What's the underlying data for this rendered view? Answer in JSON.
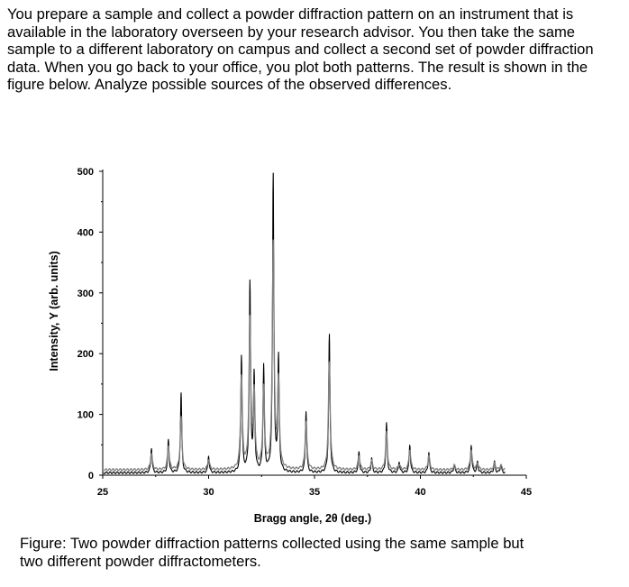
{
  "problem": {
    "text": "You prepare a sample and collect a powder diffraction pattern on an instrument that is available in the laboratory overseen by your research advisor. You then take the same sample to a different laboratory on campus and collect a second set of powder diffraction data. When you go back to your office, you plot both patterns. The result is shown in the figure below. Analyze possible sources of the observed differences."
  },
  "caption": {
    "text": "Figure: Two powder diffraction patterns collected using the same sample but two different powder diffractometers."
  },
  "chart_data": {
    "type": "line",
    "title": "",
    "xlabel": "Bragg angle, 2θ (deg.)",
    "ylabel": "Intensity, Y (arb. units)",
    "xlim": [
      25,
      45
    ],
    "ylim": [
      0,
      500
    ],
    "xticks": [
      25,
      30,
      35,
      40,
      45
    ],
    "yticks": [
      0,
      100,
      200,
      300,
      400,
      500
    ],
    "grid": false,
    "legend": "none",
    "series": [
      {
        "line_color": "#000000",
        "style": "solid",
        "baseline": 4,
        "peaks": [
          {
            "x": 27.3,
            "y": 45
          },
          {
            "x": 28.1,
            "y": 58
          },
          {
            "x": 28.7,
            "y": 135
          },
          {
            "x": 30.0,
            "y": 32
          },
          {
            "x": 31.55,
            "y": 195
          },
          {
            "x": 31.95,
            "y": 312
          },
          {
            "x": 32.15,
            "y": 160
          },
          {
            "x": 32.6,
            "y": 178
          },
          {
            "x": 33.05,
            "y": 492
          },
          {
            "x": 33.3,
            "y": 190
          },
          {
            "x": 34.6,
            "y": 105
          },
          {
            "x": 35.7,
            "y": 230
          },
          {
            "x": 37.1,
            "y": 38
          },
          {
            "x": 37.7,
            "y": 28
          },
          {
            "x": 38.4,
            "y": 85
          },
          {
            "x": 39.0,
            "y": 22
          },
          {
            "x": 39.5,
            "y": 50
          },
          {
            "x": 40.4,
            "y": 38
          },
          {
            "x": 41.6,
            "y": 18
          },
          {
            "x": 42.4,
            "y": 50
          },
          {
            "x": 42.7,
            "y": 22
          },
          {
            "x": 43.5,
            "y": 22
          },
          {
            "x": 43.8,
            "y": 18
          }
        ]
      },
      {
        "line_color": "#808080",
        "style": "solid",
        "baseline": 9,
        "peaks": [
          {
            "x": 27.3,
            "y": 36
          },
          {
            "x": 28.1,
            "y": 48
          },
          {
            "x": 28.7,
            "y": 95
          },
          {
            "x": 30.0,
            "y": 26
          },
          {
            "x": 31.55,
            "y": 160
          },
          {
            "x": 31.95,
            "y": 250
          },
          {
            "x": 32.15,
            "y": 130
          },
          {
            "x": 32.6,
            "y": 140
          },
          {
            "x": 33.05,
            "y": 380
          },
          {
            "x": 33.3,
            "y": 150
          },
          {
            "x": 34.6,
            "y": 88
          },
          {
            "x": 35.7,
            "y": 185
          },
          {
            "x": 37.1,
            "y": 32
          },
          {
            "x": 37.7,
            "y": 24
          },
          {
            "x": 38.4,
            "y": 70
          },
          {
            "x": 39.0,
            "y": 18
          },
          {
            "x": 39.5,
            "y": 42
          },
          {
            "x": 40.4,
            "y": 32
          },
          {
            "x": 41.6,
            "y": 16
          },
          {
            "x": 42.4,
            "y": 42
          },
          {
            "x": 42.7,
            "y": 20
          },
          {
            "x": 43.5,
            "y": 20
          },
          {
            "x": 43.8,
            "y": 16
          }
        ]
      }
    ]
  }
}
